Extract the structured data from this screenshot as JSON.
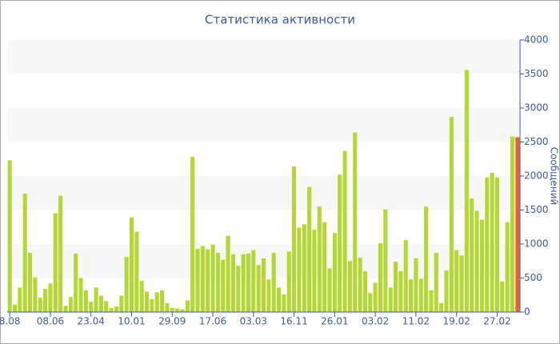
{
  "chart_data": {
    "type": "bar",
    "title": "Статистика активности",
    "y_label": "Сообщений",
    "categories": [
      "8.08",
      null,
      null,
      null,
      null,
      null,
      null,
      null,
      "08.06",
      null,
      null,
      null,
      null,
      null,
      null,
      null,
      "23.04",
      null,
      null,
      null,
      null,
      null,
      null,
      null,
      "10.01",
      null,
      null,
      null,
      null,
      null,
      null,
      null,
      "29.09",
      null,
      null,
      null,
      null,
      null,
      null,
      null,
      "17.06",
      null,
      null,
      null,
      null,
      null,
      null,
      null,
      "03.03",
      null,
      null,
      null,
      null,
      null,
      null,
      null,
      "16.11",
      null,
      null,
      null,
      null,
      null,
      null,
      null,
      "26.01",
      null,
      null,
      null,
      null,
      null,
      null,
      null,
      "03.02",
      null,
      null,
      null,
      null,
      null,
      null,
      null,
      "11.02",
      null,
      null,
      null,
      null,
      null,
      null,
      null,
      "19.02",
      null,
      null,
      null,
      null,
      null,
      null,
      null,
      "27.02",
      null,
      null,
      null,
      null
    ],
    "values": [
      2230,
      110,
      360,
      1740,
      870,
      510,
      210,
      340,
      420,
      1450,
      1710,
      90,
      220,
      860,
      500,
      320,
      150,
      360,
      240,
      160,
      60,
      80,
      240,
      810,
      1390,
      1180,
      460,
      300,
      190,
      290,
      320,
      130,
      60,
      50,
      40,
      170,
      2280,
      930,
      970,
      920,
      990,
      870,
      770,
      1120,
      850,
      680,
      850,
      860,
      910,
      690,
      790,
      480,
      870,
      360,
      260,
      890,
      2140,
      1240,
      1290,
      1840,
      1210,
      1550,
      1320,
      640,
      1160,
      2020,
      2370,
      750,
      2640,
      800,
      600,
      280,
      430,
      1010,
      1510,
      360,
      740,
      600,
      1060,
      480,
      790,
      490,
      1550,
      320,
      870,
      130,
      610,
      2870,
      910,
      830,
      3560,
      1670,
      1490,
      1360,
      1980,
      2050,
      1980,
      450,
      1320,
      2580,
      2570
    ],
    "colors": [
      "#b4d733",
      "#b4d733",
      "#b4d733",
      "#b4d733",
      "#b4d733",
      "#b4d733",
      "#b4d733",
      "#b4d733",
      "#b4d733",
      "#b4d733",
      "#b4d733",
      "#b4d733",
      "#b4d733",
      "#b4d733",
      "#b4d733",
      "#b4d733",
      "#b4d733",
      "#b4d733",
      "#b4d733",
      "#b4d733",
      "#b4d733",
      "#b4d733",
      "#b4d733",
      "#b4d733",
      "#b4d733",
      "#b4d733",
      "#b4d733",
      "#b4d733",
      "#b4d733",
      "#b4d733",
      "#b4d733",
      "#b4d733",
      "#b4d733",
      "#b4d733",
      "#b4d733",
      "#b4d733",
      "#b4d733",
      "#b4d733",
      "#b4d733",
      "#b4d733",
      "#b4d733",
      "#b4d733",
      "#b4d733",
      "#b4d733",
      "#b4d733",
      "#b4d733",
      "#b4d733",
      "#b4d733",
      "#b4d733",
      "#b4d733",
      "#b4d733",
      "#b4d733",
      "#b4d733",
      "#b4d733",
      "#b4d733",
      "#b4d733",
      "#b4d733",
      "#b4d733",
      "#b4d733",
      "#b4d733",
      "#b4d733",
      "#b4d733",
      "#b4d733",
      "#b4d733",
      "#b4d733",
      "#b4d733",
      "#b4d733",
      "#b4d733",
      "#b4d733",
      "#b4d733",
      "#b4d733",
      "#b4d733",
      "#b4d733",
      "#b4d733",
      "#b4d733",
      "#b4d733",
      "#b4d733",
      "#b4d733",
      "#b4d733",
      "#b4d733",
      "#b4d733",
      "#b4d733",
      "#b4d733",
      "#b4d733",
      "#b4d733",
      "#b4d733",
      "#b4d733",
      "#b4d733",
      "#b4d733",
      "#b4d733",
      "#b4d733",
      "#b4d733",
      "#b4d733",
      "#b4d733",
      "#b4d733",
      "#b4d733",
      "#b4d733",
      "#b4d733",
      "#b4d733",
      "#b4d733",
      "#e5642b"
    ],
    "ylim": [
      0,
      4000
    ],
    "yticks": [
      0,
      500,
      1000,
      1500,
      2000,
      2500,
      3000,
      3500,
      4000
    ],
    "grid": "bands"
  }
}
